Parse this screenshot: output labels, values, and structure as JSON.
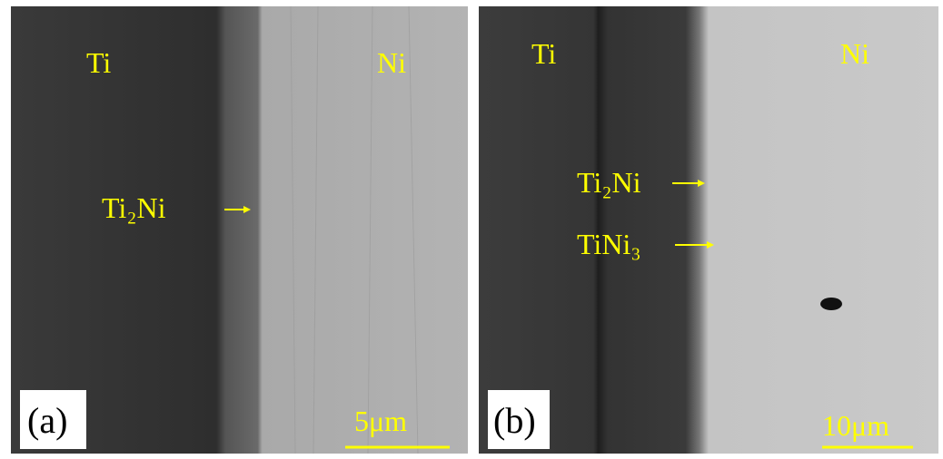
{
  "panels": [
    {
      "label": "(a)",
      "left_material": "Ti",
      "right_material": "Ni",
      "phases": [
        "Ti₂Ni"
      ],
      "scale_bar": "5μm"
    },
    {
      "label": "(b)",
      "left_material": "Ti",
      "right_material": "Ni",
      "phases": [
        "Ti₂Ni",
        "TiNi₃"
      ],
      "scale_bar": "10μm"
    }
  ]
}
